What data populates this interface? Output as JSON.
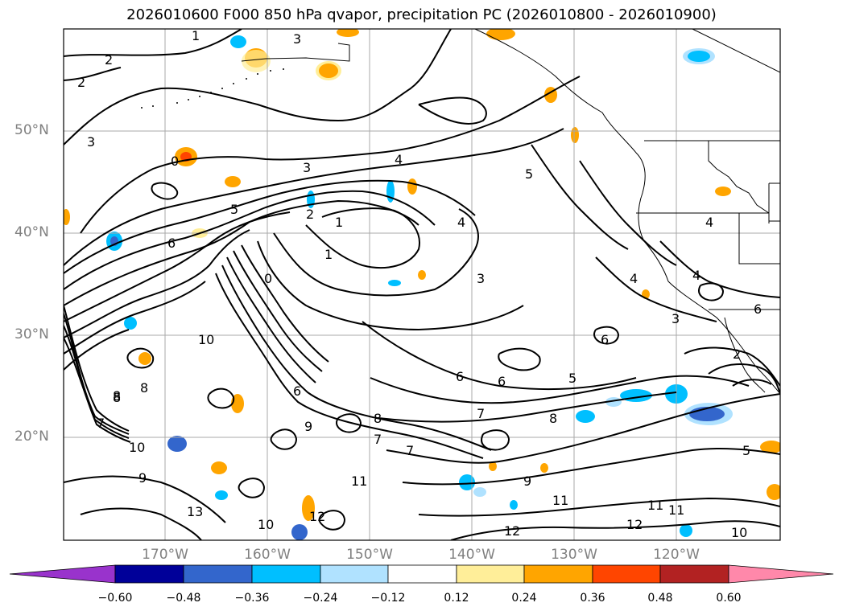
{
  "title": "2026010600 F000 850 hPa qvapor, precipitation PC (2026010800 - 2026010900)",
  "latitude_labels": [
    "50°N",
    "40°N",
    "30°N",
    "20°N"
  ],
  "longitude_labels": [
    "170°W",
    "160°W",
    "150°W",
    "140°W",
    "130°W",
    "120°W"
  ],
  "colorbar": {
    "tick_labels": [
      "−0.60",
      "−0.48",
      "−0.36",
      "−0.24",
      "−0.12",
      "0.12",
      "0.24",
      "0.36",
      "0.48",
      "0.60"
    ],
    "colors": [
      "#9933cc",
      "#000099",
      "#3366cc",
      "#00bfff",
      "#b0e2ff",
      "#ffffff",
      "#ffee99",
      "#ffa500",
      "#ff4500",
      "#b22222",
      "#ff88aa"
    ]
  },
  "contour_labels": [
    "1",
    "3",
    "2",
    "2",
    "3",
    "4",
    "5",
    "3",
    "2",
    "1",
    "1",
    "6",
    "5",
    "4",
    "3",
    "6",
    "7",
    "8",
    "6",
    "6",
    "5",
    "7",
    "8",
    "7",
    "9",
    "7",
    "8",
    "10",
    "9",
    "10",
    "11",
    "11",
    "12",
    "11",
    "12",
    "11",
    "10",
    "12",
    "13",
    "6",
    "4",
    "4",
    "3",
    "4",
    "5",
    "6",
    "10",
    "8",
    "8",
    "9",
    "0",
    "2",
    "0"
  ]
}
